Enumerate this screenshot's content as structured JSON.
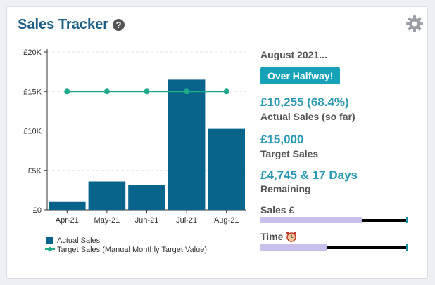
{
  "widget": {
    "title": "Sales Tracker"
  },
  "icons": {
    "help": "help-icon",
    "gear": "gear-icon",
    "clock": "alarm-clock-icon"
  },
  "colors": {
    "bar": "#08648a",
    "target": "#20a88a",
    "accent": "#2a97b3",
    "badge": "#17a2b8",
    "progress": "#c8c0ea"
  },
  "chart_data": {
    "type": "bar",
    "categories": [
      "Apr-21",
      "May-21",
      "Jun-21",
      "Jul-21",
      "Aug-21"
    ],
    "series": [
      {
        "name": "Actual Sales",
        "type": "bar",
        "values": [
          1000,
          3600,
          3200,
          16500,
          10255
        ]
      },
      {
        "name": "Target Sales (Manual Monthly Target Value)",
        "type": "line",
        "values": [
          15000,
          15000,
          15000,
          15000,
          15000
        ]
      }
    ],
    "yticks": [
      "£0",
      "£5K",
      "£10K",
      "£15K",
      "£20K"
    ],
    "ylim": [
      0,
      20000
    ],
    "legend": "bottom-left",
    "grid": true
  },
  "summary": {
    "month": "August 2021...",
    "badge": "Over Halfway!",
    "actual_value": "£10,255 (68.4%)",
    "actual_label": "Actual Sales (so far)",
    "target_value": "£15,000",
    "target_label": "Target Sales",
    "remaining_value": "£4,745 & 17 Days",
    "remaining_label": "Remaining"
  },
  "progress": {
    "sales_label": "Sales £",
    "sales_fraction": 0.684,
    "time_label": "Time",
    "time_fraction": 0.45
  }
}
